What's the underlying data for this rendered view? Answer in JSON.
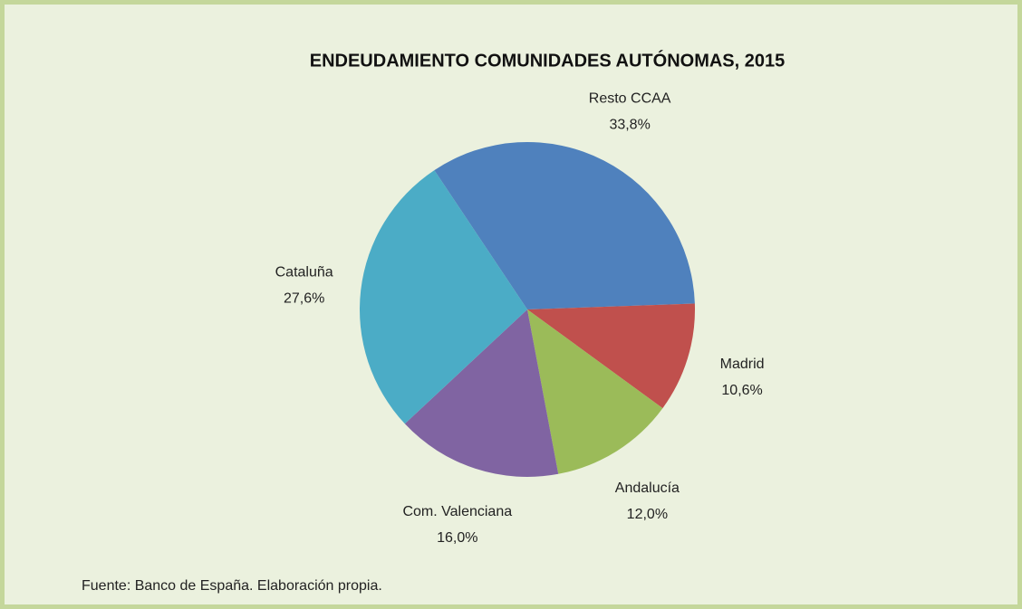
{
  "chart_data": {
    "type": "pie",
    "title": "ENDEUDAMIENTO COMUNIDADES AUTÓNOMAS, 2015",
    "categories": [
      "Resto CCAA",
      "Madrid",
      "Andalucía",
      "Com. Valenciana",
      "Cataluña"
    ],
    "values": [
      33.8,
      10.6,
      12.0,
      16.0,
      27.6
    ],
    "value_labels": [
      "33,8%",
      "10,6%",
      "12,0%",
      "16,0%",
      "27,6%"
    ],
    "colors": [
      "#4f81bd",
      "#c0504d",
      "#9bbb59",
      "#8064a2",
      "#4bacc6"
    ],
    "source": "Fuente: Banco de España. Elaboración propia."
  }
}
